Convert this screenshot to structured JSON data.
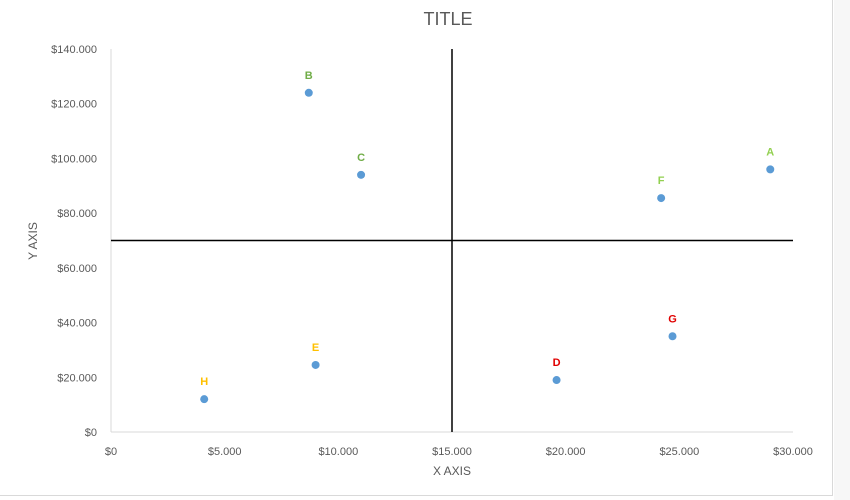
{
  "chart_data": {
    "type": "scatter",
    "title": "TITLE",
    "xlabel": "X AXIS",
    "ylabel": "Y AXIS",
    "xlim": [
      0,
      30000
    ],
    "ylim": [
      0,
      140000
    ],
    "x_ticks": [
      0,
      5000,
      10000,
      15000,
      20000,
      25000,
      30000
    ],
    "x_tick_labels": [
      "$0",
      "$5.000",
      "$10.000",
      "$15.000",
      "$20.000",
      "$25.000",
      "$30.000"
    ],
    "y_ticks": [
      0,
      20000,
      40000,
      60000,
      80000,
      100000,
      120000,
      140000
    ],
    "y_tick_labels": [
      "$0",
      "$20.000",
      "$40.000",
      "$60.000",
      "$80.000",
      "$100.000",
      "$120.000",
      "$140.000"
    ],
    "grid": false,
    "reference_lines": {
      "vertical_x": 15000,
      "horizontal_y": 70000
    },
    "marker_color": "#5b9bd5",
    "points": [
      {
        "label": "A",
        "x": 29000,
        "y": 96000,
        "label_color": "#92d050"
      },
      {
        "label": "B",
        "x": 8700,
        "y": 124000,
        "label_color": "#70ad47"
      },
      {
        "label": "C",
        "x": 11000,
        "y": 94000,
        "label_color": "#70ad47"
      },
      {
        "label": "D",
        "x": 19600,
        "y": 19000,
        "label_color": "#e00000"
      },
      {
        "label": "E",
        "x": 9000,
        "y": 24500,
        "label_color": "#ffc000"
      },
      {
        "label": "F",
        "x": 24200,
        "y": 85500,
        "label_color": "#92d050"
      },
      {
        "label": "G",
        "x": 24700,
        "y": 35000,
        "label_color": "#e00000"
      },
      {
        "label": "H",
        "x": 4100,
        "y": 12000,
        "label_color": "#ffc000"
      }
    ]
  }
}
